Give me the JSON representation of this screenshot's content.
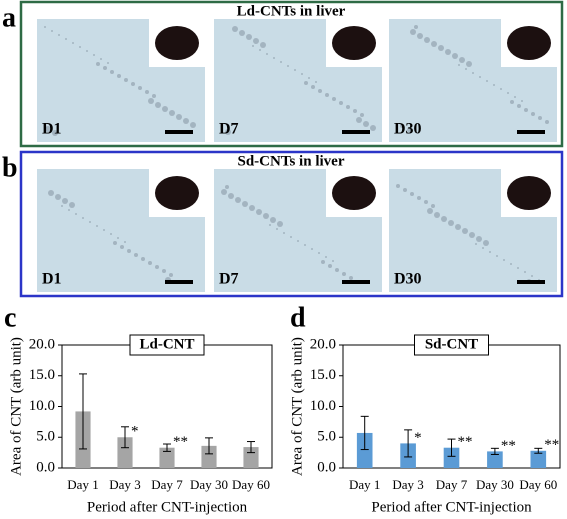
{
  "panels": [
    {
      "letter": "a",
      "title": "Ld-CNTs in liver",
      "images": [
        "D1",
        "D7",
        "D30"
      ],
      "color": "#2e6b45"
    },
    {
      "letter": "b",
      "title": "Sd-CNTs in liver",
      "images": [
        "D1",
        "D7",
        "D30"
      ],
      "color": "#2b35c8"
    }
  ],
  "chart_data": [
    {
      "type": "bar",
      "letter": "c",
      "title": "Ld-CNT",
      "ylabel": "Area of CNT (arb unit)",
      "xlabel": "Period after CNT-injection",
      "categories": [
        "Day 1",
        "Day 3",
        "Day 7",
        "Day 30",
        "Day 60"
      ],
      "values": [
        9.2,
        5.0,
        3.3,
        3.6,
        3.4
      ],
      "errors": [
        6.1,
        1.7,
        0.6,
        1.3,
        0.9
      ],
      "markers": [
        null,
        "*",
        "**",
        null,
        null
      ],
      "color": "#a5a5a5",
      "ylim": [
        0,
        20
      ],
      "yticks": [
        {
          "value": 0,
          "label": "0.0"
        },
        {
          "value": 5,
          "label": "5.0"
        },
        {
          "value": 10,
          "label": "10.0"
        },
        {
          "value": 15,
          "label": "15.0"
        },
        {
          "value": 20,
          "label": "20.0"
        }
      ]
    },
    {
      "type": "bar",
      "letter": "d",
      "title": "Sd-CNT",
      "ylabel": "Area of CNT (arb unit)",
      "xlabel": "Period after CNT-injection",
      "categories": [
        "Day 1",
        "Day 3",
        "Day 7",
        "Day 30",
        "Day 60"
      ],
      "values": [
        5.7,
        4.0,
        3.3,
        2.7,
        2.8
      ],
      "errors": [
        2.7,
        2.2,
        1.4,
        0.5,
        0.4
      ],
      "markers": [
        null,
        "*",
        "**",
        "**",
        "**"
      ],
      "color": "#5b9bd5",
      "ylim": [
        0,
        20
      ],
      "yticks": [
        {
          "value": 0,
          "label": "0.0"
        },
        {
          "value": 5,
          "label": "5.0"
        },
        {
          "value": 10,
          "label": "10.0"
        },
        {
          "value": 15,
          "label": "15.0"
        },
        {
          "value": 20,
          "label": "20.0"
        }
      ]
    }
  ]
}
